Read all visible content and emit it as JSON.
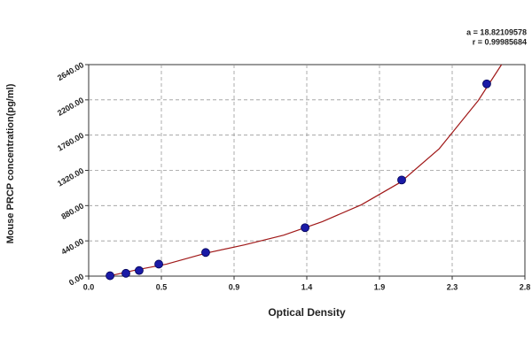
{
  "chart_data": {
    "type": "scatter",
    "xlabel": "Optical Density",
    "ylabel": "Mouse PRCP concentration(pg/ml)",
    "annotations": [
      "a = 18.82109578",
      "r = 0.99985684"
    ],
    "x": [
      0.137,
      0.239,
      0.324,
      0.45,
      0.751,
      1.389,
      2.009,
      2.555
    ],
    "values": [
      5,
      35,
      70,
      150,
      295,
      605,
      1200,
      2400
    ],
    "color": "#1a1aa6",
    "fit_x": [
      0.14,
      0.3,
      0.5,
      0.75,
      1.0,
      1.25,
      1.5,
      1.75,
      2.0,
      2.25,
      2.5,
      2.65
    ],
    "fit_values": [
      5,
      75,
      150,
      285,
      390,
      510,
      680,
      890,
      1170,
      1590,
      2190,
      2640
    ],
    "fit_color": "#a01818",
    "xlim": [
      0,
      2.8
    ],
    "xticks": [
      {
        "value": 0,
        "label": "0.0"
      },
      {
        "value": 0.4667,
        "label": "0.5"
      },
      {
        "value": 0.9333,
        "label": "0.9"
      },
      {
        "value": 1.4,
        "label": "1.4"
      },
      {
        "value": 1.8667,
        "label": "1.9"
      },
      {
        "value": 2.3333,
        "label": "2.3"
      },
      {
        "value": 2.8,
        "label": "2.8"
      }
    ],
    "ylim": [
      0,
      2640
    ],
    "yticks": [
      {
        "value": 0,
        "label": "0.00"
      },
      {
        "value": 440,
        "label": "440.00"
      },
      {
        "value": 880,
        "label": "880.00"
      },
      {
        "value": 1320,
        "label": "1320.00"
      },
      {
        "value": 1760,
        "label": "1760.00"
      },
      {
        "value": 2200,
        "label": "2200.00"
      },
      {
        "value": 2640,
        "label": "2640.00"
      }
    ],
    "grid": true
  }
}
